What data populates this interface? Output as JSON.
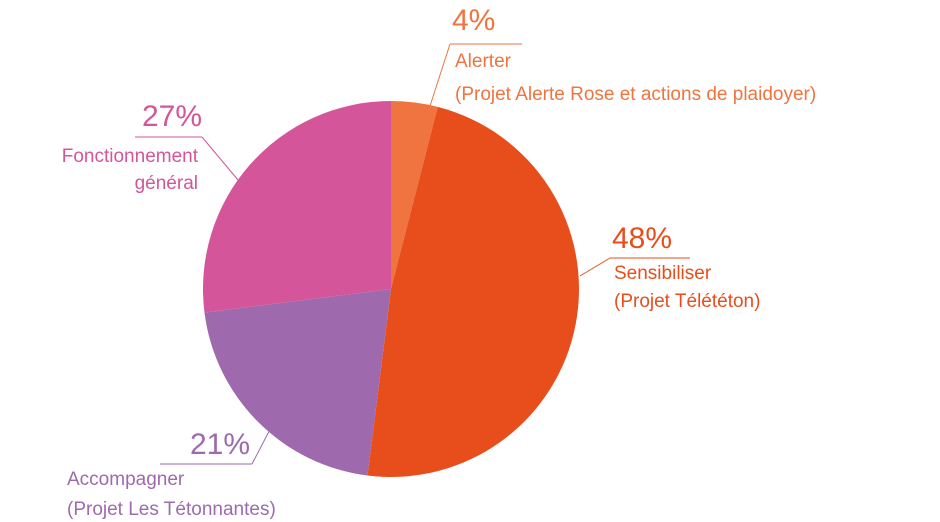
{
  "chart_data": {
    "type": "pie",
    "categories": [
      [
        "Alerter",
        "(Projet Alerte Rose et actions de plaidoyer)"
      ],
      [
        "Sensibiliser",
        "(Projet Télététon)"
      ],
      [
        "Accompagner",
        "(Projet Les Tétonnantes)"
      ],
      [
        "Fonctionnement",
        "général"
      ]
    ],
    "values": [
      4,
      48,
      21,
      27
    ],
    "value_labels": [
      "4%",
      "48%",
      "21%",
      "27%"
    ],
    "colors": [
      "#ef7440",
      "#e84e1b",
      "#9e6aad",
      "#d4559a"
    ]
  }
}
